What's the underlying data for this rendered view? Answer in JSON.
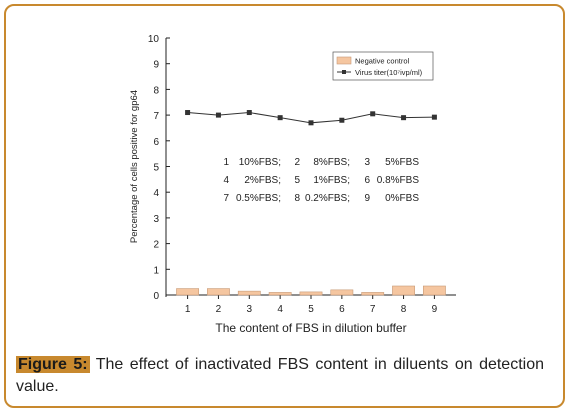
{
  "chart_data": {
    "type": "bar+line",
    "title": "",
    "xlabel": "The content of FBS in dilution buffer",
    "ylabel": "Percentage of cells positive for gp64",
    "ylim": [
      0,
      10
    ],
    "yticks": [
      "0",
      "1",
      "2",
      "3",
      "4",
      "5",
      "6",
      "7",
      "8",
      "9",
      "10"
    ],
    "categories": [
      "1",
      "2",
      "3",
      "4",
      "5",
      "6",
      "7",
      "8",
      "9"
    ],
    "series": [
      {
        "name": "Negative control",
        "kind": "bar",
        "color": "#f5c6a0",
        "values": [
          0.25,
          0.25,
          0.15,
          0.1,
          0.12,
          0.2,
          0.1,
          0.35,
          0.35
        ]
      },
      {
        "name": "Virus titer(10⁷ivp/ml)",
        "kind": "line",
        "color": "#333333",
        "values": [
          7.1,
          7.0,
          7.1,
          6.9,
          6.7,
          6.8,
          7.05,
          6.9,
          6.92
        ]
      }
    ],
    "legend_placement": "top-right",
    "annotations": [
      [
        "1",
        "10%FBS;",
        "2",
        "8%FBS;",
        "3",
        "5%FBS"
      ],
      [
        "4",
        "2%FBS;",
        "5",
        "1%FBS;",
        "6",
        "0.8%FBS"
      ],
      [
        "7",
        "0.5%FBS;",
        "8",
        "0.2%FBS;",
        "9",
        "0%FBS"
      ]
    ]
  },
  "caption": {
    "label": "Figure 5:",
    "text": " The effect of inactivated FBS content in diluents on detection value."
  }
}
